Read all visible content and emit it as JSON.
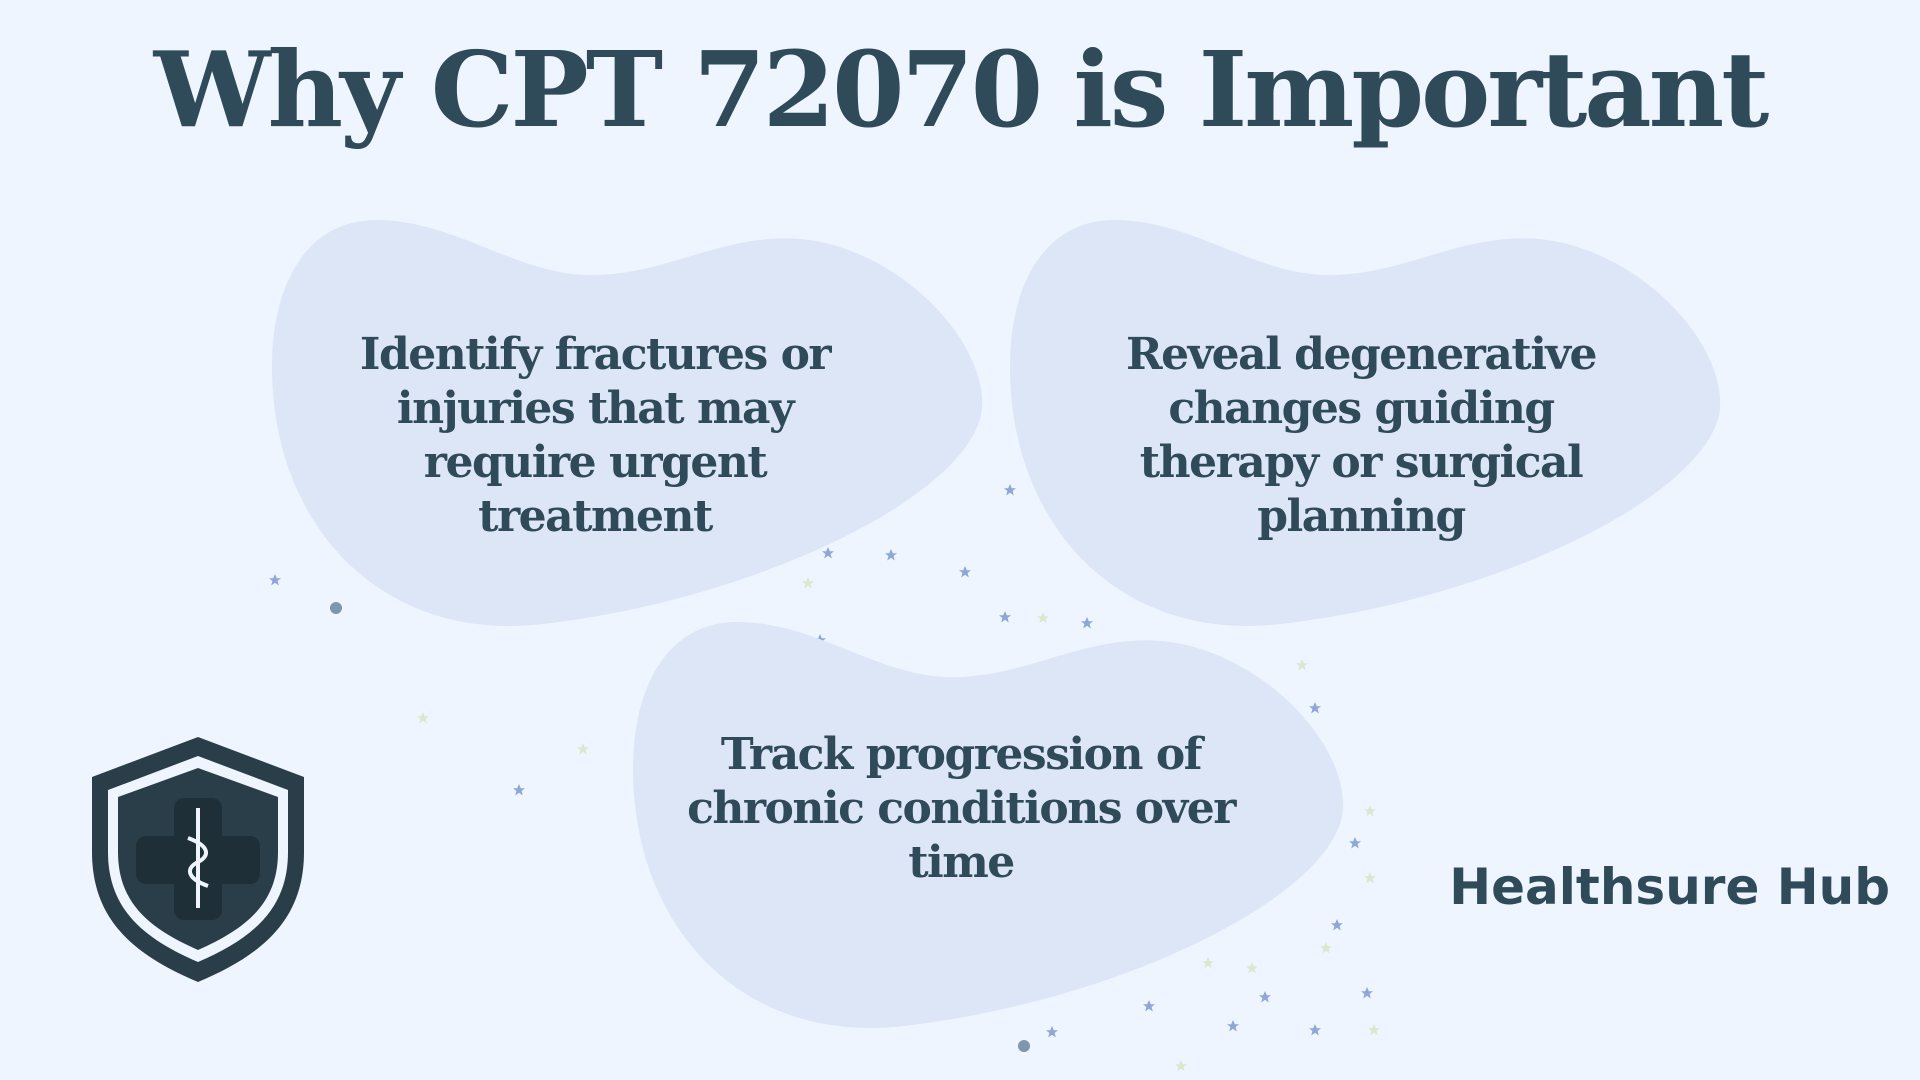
{
  "title": "Why CPT 72070 is Important",
  "cards": [
    {
      "text": "Identify fractures or injuries that may require urgent treatment"
    },
    {
      "text": "Reveal degenerative changes guiding therapy or surgical planning"
    },
    {
      "text": "Track progression of chronic conditions over time"
    }
  ],
  "brand": "Healthsure Hub"
}
